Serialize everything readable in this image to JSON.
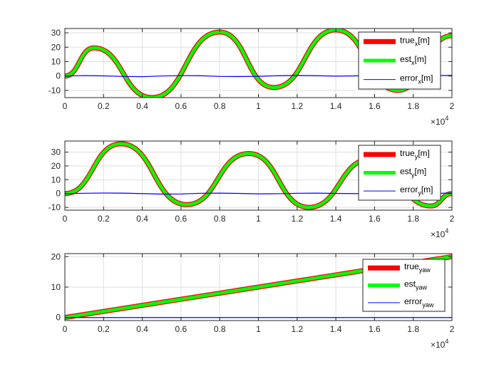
{
  "chart_data": [
    {
      "type": "line",
      "title": "",
      "xlabel": "",
      "ylabel": "",
      "xlim": [
        0,
        20000
      ],
      "ylim": [
        -15,
        33
      ],
      "x_ticks": [
        0,
        2000,
        4000,
        6000,
        8000,
        10000,
        12000,
        14000,
        16000,
        18000,
        20000
      ],
      "x_tick_labels": [
        "0",
        "0.2",
        "0.4",
        "0.6",
        "0.8",
        "1",
        "1.2",
        "1.4",
        "1.6",
        "1.8",
        "2"
      ],
      "y_ticks": [
        -10,
        0,
        10,
        20,
        30
      ],
      "y_tick_labels": [
        "-10",
        "0",
        "10",
        "20",
        "30"
      ],
      "x_multiplier": "×10",
      "x_multiplier_exp": "4",
      "grid": true,
      "legend_position": "top-right",
      "series": [
        {
          "key": "true",
          "label_main": "true",
          "label_sub": "x",
          "label_suffix": "[m]",
          "color": "#ff0000",
          "style": "thick",
          "x": [
            0,
            1500,
            4500,
            8000,
            10800,
            14000,
            17200,
            20000
          ],
          "y": [
            0,
            19.5,
            -15,
            30.5,
            -8,
            32,
            -10,
            28
          ]
        },
        {
          "key": "est",
          "label_main": "est",
          "label_sub": "x",
          "label_suffix": "[m]",
          "color": "#00ff00",
          "style": "medium",
          "x": [
            0,
            1500,
            4500,
            8000,
            10800,
            14000,
            17200,
            20000
          ],
          "y": [
            0,
            19.5,
            -15,
            30.5,
            -8,
            32,
            -10,
            28
          ]
        },
        {
          "key": "error",
          "label_main": "error",
          "label_sub": "x",
          "label_suffix": "[m]",
          "color": "#0000ff",
          "style": "thin",
          "x": [
            0,
            1000,
            2000,
            3000,
            4000,
            5000,
            6000,
            7000,
            8000,
            9000,
            10000,
            11000,
            12000,
            13000,
            14000,
            15000,
            16000,
            17000,
            18000,
            19000,
            20000
          ],
          "y": [
            0,
            0.3,
            0.1,
            -0.3,
            -0.5,
            0,
            0.3,
            0.2,
            -0.3,
            -0.4,
            -0.2,
            0.2,
            0.4,
            0.2,
            -0.1,
            0.1,
            0.2,
            0,
            0.2,
            0.3,
            0.4
          ]
        }
      ]
    },
    {
      "type": "line",
      "title": "",
      "xlabel": "",
      "ylabel": "",
      "xlim": [
        0,
        20000
      ],
      "ylim": [
        -12,
        38
      ],
      "x_ticks": [
        0,
        2000,
        4000,
        6000,
        8000,
        10000,
        12000,
        14000,
        16000,
        18000,
        20000
      ],
      "x_tick_labels": [
        "0",
        "0.2",
        "0.4",
        "0.6",
        "0.8",
        "1",
        "1.2",
        "1.4",
        "1.6",
        "1.8",
        "2"
      ],
      "y_ticks": [
        -10,
        0,
        10,
        20,
        30
      ],
      "y_tick_labels": [
        "-10",
        "0",
        "10",
        "20",
        "30"
      ],
      "x_multiplier": "×10",
      "x_multiplier_exp": "4",
      "grid": true,
      "legend_position": "top-right",
      "series": [
        {
          "key": "true",
          "label_main": "true",
          "label_sub": "y",
          "label_suffix": "[m]",
          "color": "#ff0000",
          "style": "thick",
          "x": [
            0,
            2900,
            6300,
            9500,
            12600,
            15800,
            18900,
            20000
          ],
          "y": [
            0,
            36,
            -8,
            29,
            -10,
            25,
            -9,
            0
          ]
        },
        {
          "key": "est",
          "label_main": "est",
          "label_sub": "y",
          "label_suffix": "[m]",
          "color": "#00ff00",
          "style": "medium",
          "x": [
            0,
            2900,
            6300,
            9500,
            12600,
            15800,
            18900,
            20000
          ],
          "y": [
            0,
            36,
            -8,
            29,
            -10,
            25,
            -9,
            0
          ]
        },
        {
          "key": "error",
          "label_main": "error",
          "label_sub": "y",
          "label_suffix": "[m]",
          "color": "#0000ff",
          "style": "thin",
          "x": [
            0,
            1000,
            2000,
            3000,
            4000,
            5000,
            6000,
            7000,
            8000,
            9000,
            10000,
            11000,
            12000,
            13000,
            14000,
            15000,
            16000,
            17000,
            18000,
            19000,
            20000
          ],
          "y": [
            0,
            0.2,
            0.4,
            0.3,
            0,
            -0.4,
            -0.3,
            0.2,
            0.3,
            0.1,
            -0.2,
            -0.1,
            0.2,
            0.3,
            0.1,
            0,
            0.2,
            0.1,
            -0.1,
            0.2,
            0.3
          ]
        }
      ]
    },
    {
      "type": "line",
      "title": "",
      "xlabel": "",
      "ylabel": "",
      "xlim": [
        0,
        20000
      ],
      "ylim": [
        -1,
        21
      ],
      "x_ticks": [
        0,
        2000,
        4000,
        6000,
        8000,
        10000,
        12000,
        14000,
        16000,
        18000,
        20000
      ],
      "x_tick_labels": [
        "0",
        "0.2",
        "0.4",
        "0.6",
        "0.8",
        "1",
        "1.2",
        "1.4",
        "1.6",
        "1.8",
        "2"
      ],
      "y_ticks": [
        0,
        10,
        20
      ],
      "y_tick_labels": [
        "0",
        "10",
        "20"
      ],
      "x_multiplier": "×10",
      "x_multiplier_exp": "4",
      "grid": true,
      "legend_position": "right",
      "series": [
        {
          "key": "true",
          "label_main": "true",
          "label_sub": "yaw",
          "label_suffix": "",
          "color": "#ff0000",
          "style": "thick",
          "x": [
            0,
            2000,
            4000,
            6000,
            8000,
            10000,
            12000,
            14000,
            16000,
            18000,
            20000
          ],
          "y": [
            0,
            2,
            4,
            6,
            8,
            10,
            12,
            14,
            16,
            18,
            20
          ]
        },
        {
          "key": "est",
          "label_main": "est",
          "label_sub": "yaw",
          "label_suffix": "",
          "color": "#00ff00",
          "style": "medium",
          "x": [
            0,
            2000,
            4000,
            6000,
            8000,
            10000,
            12000,
            14000,
            16000,
            18000,
            20000
          ],
          "y": [
            0,
            2,
            4,
            6,
            8,
            10,
            12,
            14,
            16,
            18,
            20
          ]
        },
        {
          "key": "error",
          "label_main": "error",
          "label_sub": "yaw",
          "label_suffix": "",
          "color": "#0000ff",
          "style": "thin",
          "x": [
            0,
            20000
          ],
          "y": [
            0,
            0
          ]
        }
      ]
    }
  ]
}
